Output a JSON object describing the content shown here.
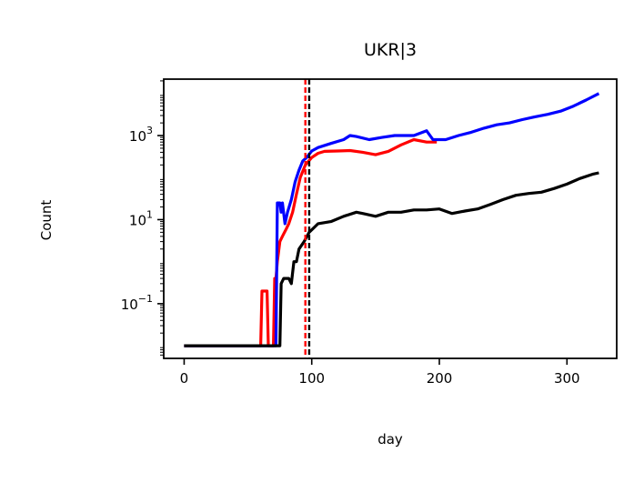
{
  "chart_data": {
    "type": "line",
    "title": "UKR|3",
    "xlabel": "day",
    "ylabel": "Count",
    "x_ticks": [
      {
        "value": 0,
        "label": "0"
      },
      {
        "value": 100,
        "label": "100"
      },
      {
        "value": 200,
        "label": "200"
      },
      {
        "value": 300,
        "label": "300"
      }
    ],
    "y_ticks": [
      {
        "value": 0.1,
        "base": "10",
        "exp": "−1"
      },
      {
        "value": 10,
        "base": "10",
        "exp": "1"
      },
      {
        "value": 1000,
        "base": "10",
        "exp": "3"
      }
    ],
    "xlim": [
      -16,
      339
    ],
    "ylim": [
      0.005,
      22000
    ],
    "yscale": "log",
    "grid": false,
    "series": [
      {
        "color": "#ff0000",
        "points": [
          [
            0,
            0.01
          ],
          [
            40,
            0.01
          ],
          [
            60,
            0.01
          ],
          [
            61,
            0.2
          ],
          [
            65,
            0.2
          ],
          [
            66,
            0.01
          ],
          [
            70,
            0.01
          ],
          [
            71,
            0.4
          ],
          [
            72,
            0.4
          ],
          [
            73,
            1
          ],
          [
            75,
            3
          ],
          [
            77,
            4
          ],
          [
            80,
            6
          ],
          [
            82,
            8
          ],
          [
            85,
            15
          ],
          [
            88,
            40
          ],
          [
            91,
            100
          ],
          [
            95,
            200
          ],
          [
            100,
            300
          ],
          [
            105,
            380
          ],
          [
            110,
            420
          ],
          [
            120,
            430
          ],
          [
            130,
            440
          ],
          [
            140,
            400
          ],
          [
            150,
            350
          ],
          [
            160,
            420
          ],
          [
            170,
            600
          ],
          [
            180,
            800
          ],
          [
            190,
            700
          ],
          [
            198,
            700
          ]
        ]
      },
      {
        "color": "#0000ff",
        "points": [
          [
            0,
            0.01
          ],
          [
            50,
            0.01
          ],
          [
            72,
            0.01
          ],
          [
            73,
            25
          ],
          [
            75,
            25
          ],
          [
            76,
            15
          ],
          [
            77,
            25
          ],
          [
            79,
            8
          ],
          [
            81,
            15
          ],
          [
            84,
            30
          ],
          [
            87,
            80
          ],
          [
            90,
            150
          ],
          [
            93,
            250
          ],
          [
            96,
            300
          ],
          [
            100,
            430
          ],
          [
            105,
            520
          ],
          [
            115,
            650
          ],
          [
            125,
            800
          ],
          [
            130,
            1000
          ],
          [
            135,
            950
          ],
          [
            145,
            800
          ],
          [
            155,
            900
          ],
          [
            165,
            1000
          ],
          [
            170,
            1000
          ],
          [
            180,
            1000
          ],
          [
            190,
            1300
          ],
          [
            195,
            800
          ],
          [
            205,
            800
          ],
          [
            215,
            1000
          ],
          [
            225,
            1200
          ],
          [
            235,
            1500
          ],
          [
            245,
            1800
          ],
          [
            255,
            2000
          ],
          [
            265,
            2400
          ],
          [
            275,
            2800
          ],
          [
            285,
            3200
          ],
          [
            295,
            3800
          ],
          [
            305,
            5000
          ],
          [
            315,
            7000
          ],
          [
            325,
            10000
          ]
        ]
      },
      {
        "color": "#000000",
        "points": [
          [
            0,
            0.01
          ],
          [
            60,
            0.01
          ],
          [
            75,
            0.01
          ],
          [
            76,
            0.3
          ],
          [
            78,
            0.4
          ],
          [
            82,
            0.4
          ],
          [
            84,
            0.3
          ],
          [
            86,
            1
          ],
          [
            88,
            1
          ],
          [
            90,
            2
          ],
          [
            94,
            3
          ],
          [
            98,
            5
          ],
          [
            105,
            8
          ],
          [
            115,
            9
          ],
          [
            125,
            12
          ],
          [
            135,
            15
          ],
          [
            140,
            14
          ],
          [
            150,
            12
          ],
          [
            160,
            15
          ],
          [
            170,
            15
          ],
          [
            180,
            17
          ],
          [
            190,
            17
          ],
          [
            200,
            18
          ],
          [
            210,
            14
          ],
          [
            220,
            16
          ],
          [
            230,
            18
          ],
          [
            240,
            23
          ],
          [
            250,
            30
          ],
          [
            260,
            38
          ],
          [
            270,
            42
          ],
          [
            280,
            45
          ],
          [
            290,
            55
          ],
          [
            300,
            70
          ],
          [
            310,
            95
          ],
          [
            320,
            120
          ],
          [
            325,
            130
          ]
        ]
      }
    ],
    "vlines": [
      {
        "x": 95,
        "color": "#ff0000",
        "style": "dashed"
      },
      {
        "x": 98,
        "color": "#000000",
        "style": "dashed"
      }
    ]
  }
}
